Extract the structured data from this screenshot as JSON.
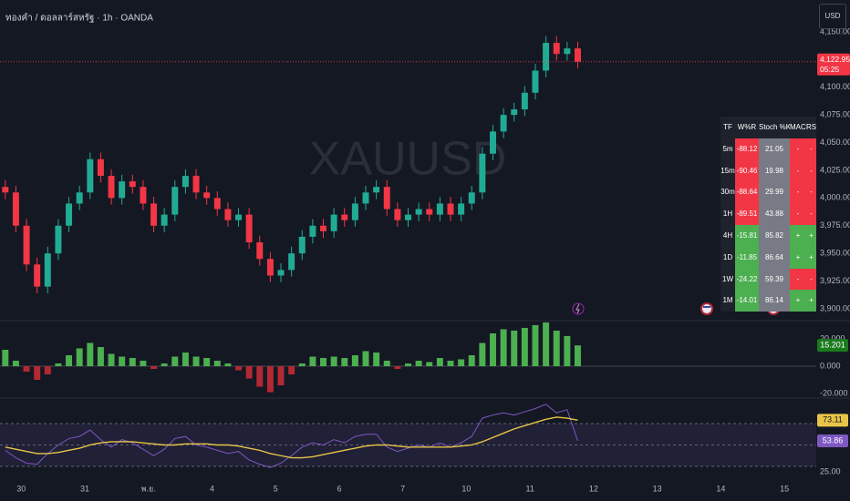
{
  "header": {
    "title": "ทองคำ / ดอลลาร์สหรัฐ · 1h · OANDA",
    "watermark": "XAUUSD",
    "currency": "USD"
  },
  "chart_data": [
    {
      "type": "candlestick",
      "categories": [
        null,
        null,
        "30",
        null,
        null,
        null,
        null,
        null,
        "31",
        null,
        null,
        null,
        null,
        null,
        "พ.ย.",
        null,
        null,
        null,
        null,
        null,
        "4",
        null,
        null,
        null,
        null,
        null,
        "5",
        null,
        null,
        null,
        null,
        null,
        "6",
        null,
        null,
        null,
        null,
        null,
        "7",
        null,
        null,
        null,
        null,
        null,
        "10",
        null,
        null,
        null,
        null,
        null,
        "11",
        null,
        null,
        null,
        null,
        null,
        "12",
        null,
        null,
        null,
        null,
        null,
        "13",
        null,
        null,
        null,
        null,
        null,
        "14",
        null,
        null,
        null,
        null,
        null,
        "15",
        null,
        null
      ],
      "open": [
        4010,
        4005,
        3975,
        3940,
        3920,
        3950,
        3975,
        3995,
        4005,
        4035,
        4020,
        4000,
        4015,
        4010,
        3995,
        3975,
        3985,
        4010,
        4020,
        4005,
        4000,
        3990,
        3980,
        3985,
        3960,
        3945,
        3930,
        3935,
        3950,
        3965,
        3975,
        3970,
        3985,
        3980,
        3995,
        4005,
        4010,
        3990,
        3980,
        3985,
        3990,
        3985,
        3995,
        3985,
        3995,
        4005,
        4040,
        4060,
        4075,
        4080,
        4095,
        4115,
        4140,
        4130,
        4135,
        null,
        null,
        null,
        null,
        null,
        null,
        null,
        null,
        null,
        null,
        null,
        null,
        null,
        null,
        null,
        null,
        null,
        null,
        null,
        null,
        null,
        null
      ],
      "high": [
        4016,
        4011,
        3981,
        3946,
        3956,
        3981,
        4001,
        4011,
        4041,
        4041,
        4026,
        4021,
        4021,
        4016,
        4001,
        3991,
        4016,
        4026,
        4026,
        4011,
        4006,
        3996,
        3991,
        3991,
        3966,
        3951,
        3941,
        3956,
        3971,
        3981,
        3981,
        3991,
        3991,
        4001,
        4011,
        4016,
        4016,
        3996,
        3991,
        3996,
        3996,
        4001,
        4001,
        4001,
        4011,
        4046,
        4066,
        4081,
        4086,
        4101,
        4121,
        4146,
        4146,
        4141,
        4141,
        null,
        null,
        null,
        null,
        null,
        null,
        null,
        null,
        null,
        null,
        null,
        null,
        null,
        null,
        null,
        null,
        null,
        null,
        null,
        null,
        null,
        null
      ],
      "low": [
        3999,
        3969,
        3934,
        3914,
        3914,
        3944,
        3969,
        3989,
        3999,
        4014,
        3994,
        3994,
        4004,
        3989,
        3969,
        3969,
        3979,
        4004,
        3999,
        3994,
        3984,
        3974,
        3974,
        3954,
        3939,
        3924,
        3924,
        3929,
        3944,
        3959,
        3964,
        3964,
        3974,
        3974,
        3989,
        3999,
        3984,
        3974,
        3974,
        3979,
        3979,
        3979,
        3979,
        3979,
        3989,
        3999,
        4034,
        4054,
        4069,
        4074,
        4089,
        4109,
        4124,
        4124,
        4117,
        null,
        null,
        null,
        null,
        null,
        null,
        null,
        null,
        null,
        null,
        null,
        null,
        null,
        null,
        null,
        null,
        null,
        null,
        null,
        null,
        null,
        null
      ],
      "close": [
        4005,
        3975,
        3940,
        3920,
        3950,
        3975,
        3995,
        4005,
        4035,
        4020,
        4000,
        4015,
        4010,
        3995,
        3975,
        3985,
        4010,
        4020,
        4005,
        4000,
        3990,
        3980,
        3985,
        3960,
        3945,
        3930,
        3935,
        3950,
        3965,
        3975,
        3970,
        3985,
        3980,
        3995,
        4005,
        4010,
        3990,
        3980,
        3985,
        3990,
        3985,
        3995,
        3985,
        3995,
        4005,
        4040,
        4060,
        4075,
        4080,
        4095,
        4115,
        4140,
        4130,
        4135,
        4122.95,
        null,
        null,
        null,
        null,
        null,
        null,
        null,
        null,
        null,
        null,
        null,
        null,
        null,
        null,
        null,
        null,
        null,
        null,
        null,
        null,
        null,
        null
      ],
      "up_color": "#22ab94",
      "down_color": "#f23645",
      "ylim": [
        3889.3,
        4178.7
      ],
      "yticks": [
        {
          "value": 3900,
          "label": "3,900.000"
        },
        {
          "value": 3925,
          "label": "3,925.000"
        },
        {
          "value": 3950,
          "label": "3,950.000"
        },
        {
          "value": 3975,
          "label": "3,975.000"
        },
        {
          "value": 4000,
          "label": "4,000.000"
        },
        {
          "value": 4025,
          "label": "4,025.000"
        },
        {
          "value": 4050,
          "label": "4,050.000"
        },
        {
          "value": 4075,
          "label": "4,075.000"
        },
        {
          "value": 4100,
          "label": "4,100.000"
        },
        {
          "value": 4150,
          "label": "4,150.000"
        }
      ],
      "price_label": {
        "value": 4122.95,
        "label": "4,122.950"
      },
      "countdown": "05:25",
      "grid": false
    },
    {
      "type": "bar",
      "values": [
        12,
        4,
        -4,
        -10,
        -6,
        2,
        8,
        13,
        17,
        14,
        9,
        7,
        6,
        4,
        -2,
        2,
        7,
        10,
        7,
        6,
        4,
        2,
        -3,
        -9,
        -15,
        -19,
        -14,
        -6,
        2,
        7,
        6,
        7,
        6,
        8,
        11,
        10,
        4,
        -2,
        2,
        4,
        3,
        6,
        4,
        5,
        8,
        17,
        24,
        27,
        26,
        28,
        30,
        32,
        26,
        22,
        15.201,
        null,
        null,
        null,
        null,
        null,
        null,
        null,
        null,
        null,
        null,
        null,
        null,
        null,
        null,
        null,
        null,
        null,
        null,
        null,
        null,
        null,
        null
      ],
      "positive_color": "#4caf50",
      "negative_color": "#b22833",
      "ylim": [
        -23.3,
        33.3
      ],
      "yticks": [
        {
          "value": 20,
          "label": "20.000"
        },
        {
          "value": 0,
          "label": "0.000"
        },
        {
          "value": -20,
          "label": "-20.000"
        }
      ]
    },
    {
      "type": "line",
      "series": [
        {
          "color": "#7e57c2",
          "values": [
            45,
            38,
            33,
            32,
            42,
            50,
            56,
            58,
            64,
            55,
            48,
            55,
            52,
            46,
            40,
            46,
            56,
            58,
            50,
            48,
            45,
            42,
            44,
            36,
            32,
            29,
            33,
            40,
            48,
            52,
            50,
            55,
            52,
            58,
            60,
            60,
            48,
            44,
            47,
            50,
            48,
            52,
            48,
            52,
            58,
            75,
            78,
            80,
            78,
            81,
            84,
            88,
            80,
            83,
            53.86,
            null,
            null,
            null,
            null,
            null,
            null,
            null,
            null,
            null,
            null,
            null,
            null,
            null,
            null,
            null,
            null,
            null,
            null,
            null,
            null,
            null,
            null
          ]
        },
        {
          "color": "#e8c547",
          "values": [
            48,
            46,
            44,
            42,
            42,
            43,
            45,
            47,
            50,
            52,
            53,
            53,
            53,
            52,
            51,
            50,
            50,
            51,
            51,
            51,
            50,
            50,
            49,
            47,
            45,
            42,
            40,
            38,
            38,
            39,
            41,
            43,
            45,
            47,
            49,
            50,
            50,
            49,
            48,
            48,
            48,
            48,
            48,
            49,
            50,
            53,
            57,
            61,
            65,
            68,
            71,
            74,
            76,
            75,
            73.11,
            null,
            null,
            null,
            null,
            null,
            null,
            null,
            null,
            null,
            null,
            null,
            null,
            null,
            null,
            null,
            null,
            null,
            null,
            null,
            null,
            null,
            null
          ]
        }
      ],
      "bands": [
        70,
        50,
        30
      ],
      "ylim": [
        23.2,
        93.8
      ],
      "yticks": [
        {
          "value": 25,
          "label": "25.00"
        }
      ]
    }
  ],
  "table": {
    "header": [
      "TF",
      "W%R",
      "Stoch %K",
      "MACD",
      "RSI"
    ],
    "rows": [
      [
        "5m",
        -88.12,
        21.05,
        "-",
        "-"
      ],
      [
        "15m",
        -90.46,
        19.98,
        "-",
        "-"
      ],
      [
        "30m",
        -88.64,
        29.99,
        "-",
        "-"
      ],
      [
        "1H",
        -89.51,
        43.88,
        "-",
        "-"
      ],
      [
        "4H",
        -15.81,
        85.82,
        "+",
        "+"
      ],
      [
        "1D",
        -11.85,
        86.64,
        "+",
        "+"
      ],
      [
        "1W",
        -24.22,
        59.39,
        "-",
        "-"
      ],
      [
        "1M",
        -14.01,
        86.14,
        "+",
        "+"
      ]
    ]
  }
}
